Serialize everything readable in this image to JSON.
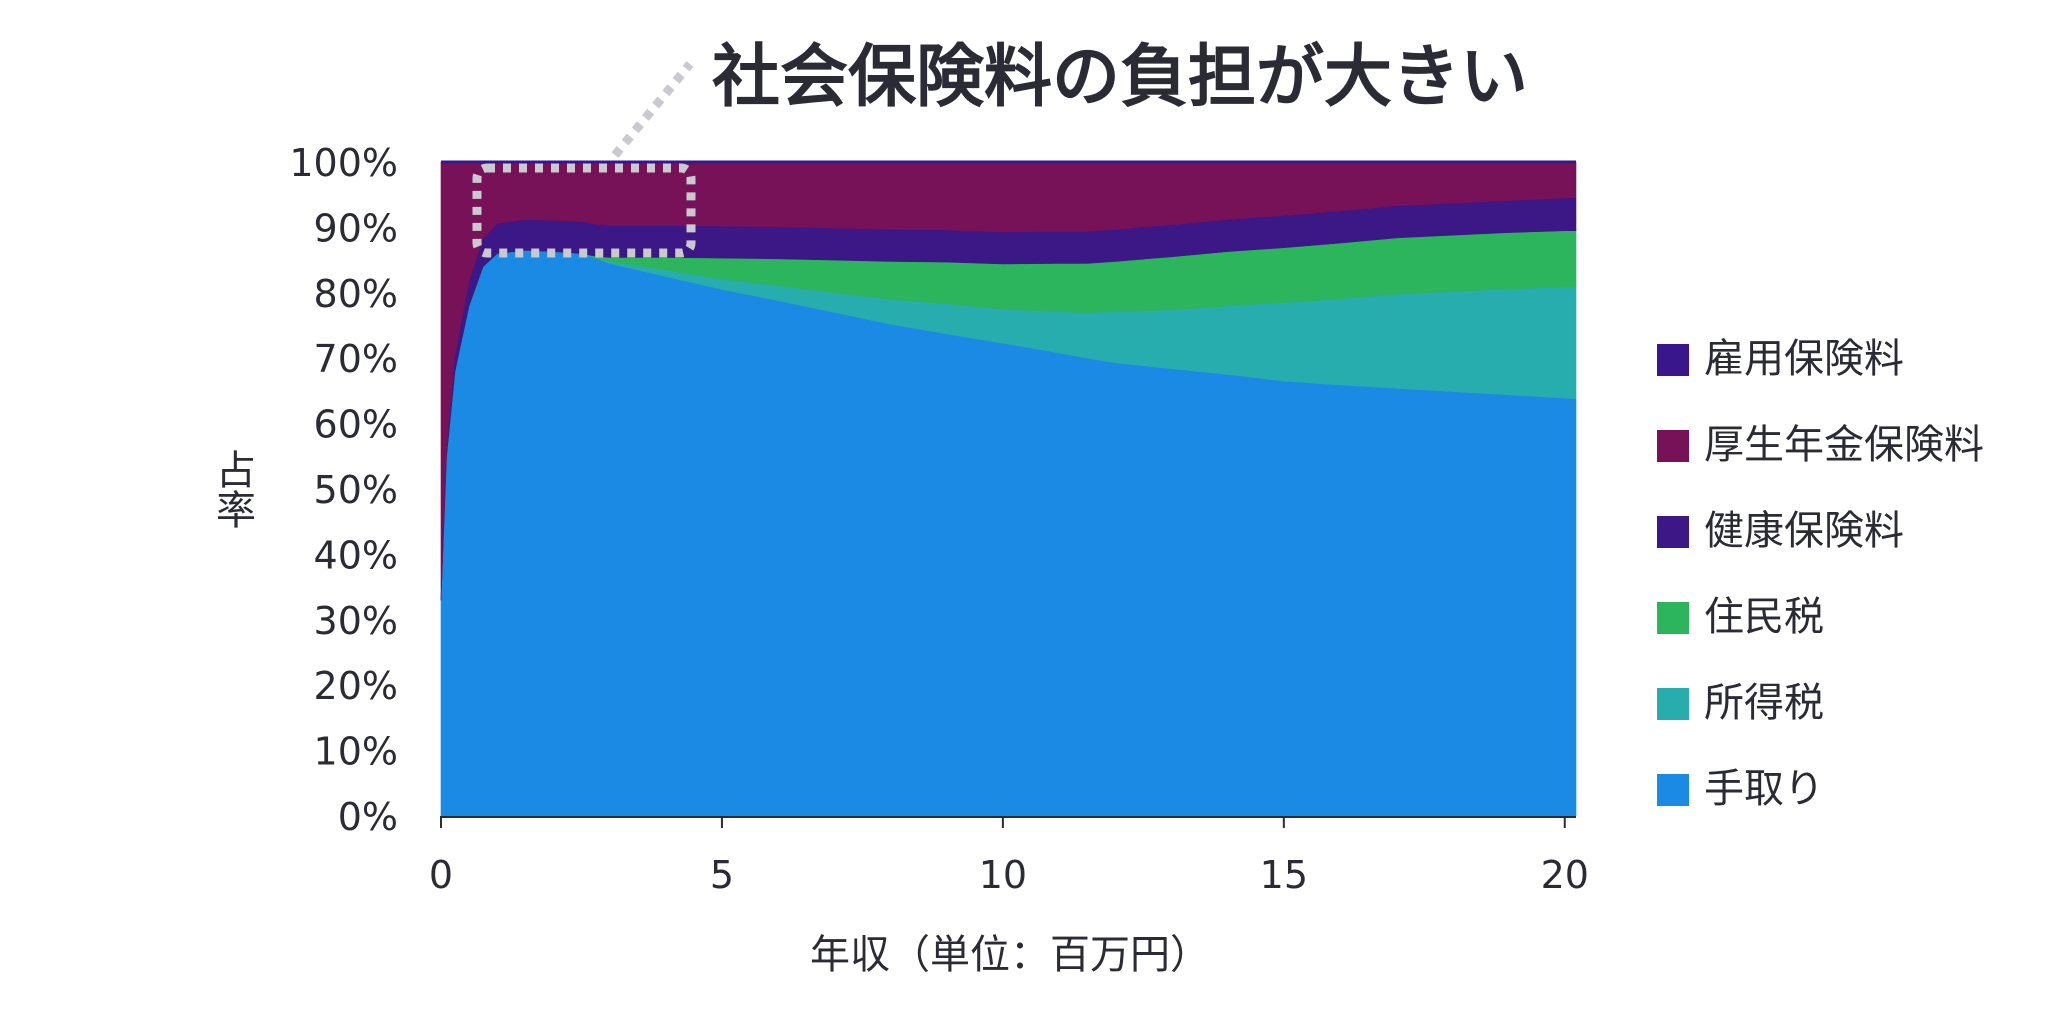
{
  "chart_data": {
    "type": "area",
    "stacked": true,
    "normalized": true,
    "title": "",
    "annotation": "社会保険料の負担が大きい",
    "xlabel": "年収（単位：百万円）",
    "ylabel": "占率",
    "xlim": [
      0,
      20.2
    ],
    "ylim": [
      0,
      100
    ],
    "x_ticks": [
      0,
      5,
      10,
      15,
      20
    ],
    "x_tick_labels": [
      "0",
      "5",
      "10",
      "15",
      "20"
    ],
    "y_ticks": [
      0,
      10,
      20,
      30,
      40,
      50,
      60,
      70,
      80,
      90,
      100
    ],
    "y_tick_labels": [
      "0%",
      "10%",
      "20%",
      "30%",
      "40%",
      "50%",
      "60%",
      "70%",
      "80%",
      "90%",
      "100%"
    ],
    "grid": false,
    "legend_position": "right",
    "legend": [
      "雇用保険料",
      "厚生年金保険料",
      "健康保険料",
      "住民税",
      "所得税",
      "手取り"
    ],
    "x": [
      0,
      0.1,
      0.25,
      0.5,
      0.75,
      1.0,
      1.5,
      2.0,
      2.5,
      2.75,
      3,
      4,
      5,
      6,
      7,
      8,
      9,
      10,
      11,
      11.5,
      12,
      13,
      14,
      15,
      16,
      17,
      18,
      19,
      20,
      20.2
    ],
    "series": [
      {
        "name": "手取り",
        "color": "#1a8ae5",
        "values": [
          33,
          55,
          68,
          78,
          84,
          86,
          86.5,
          86.3,
          86,
          85.3,
          84.5,
          82.5,
          80.5,
          78.8,
          77,
          75.2,
          73.7,
          72.3,
          70.8,
          70,
          69.3,
          68.4,
          67.5,
          66.5,
          65.9,
          65.4,
          64.9,
          64.4,
          63.9,
          63.8
        ]
      },
      {
        "name": "所得税",
        "color": "#27adad",
        "values": [
          0,
          0,
          0,
          0,
          0,
          0,
          0,
          0,
          0,
          0,
          0.3,
          1.0,
          1.6,
          2.3,
          3.0,
          3.8,
          4.6,
          5.2,
          6.3,
          7.0,
          7.8,
          9.0,
          10.5,
          12.0,
          13.2,
          14.4,
          15.3,
          16.2,
          17.0,
          17.1
        ]
      },
      {
        "name": "住民税",
        "color": "#2db55d",
        "values": [
          0,
          0,
          0,
          0,
          0,
          0,
          0,
          0,
          0,
          0.3,
          0.6,
          1.9,
          3.2,
          4.1,
          5.0,
          5.8,
          6.4,
          6.9,
          7.4,
          7.5,
          7.7,
          8.1,
          8.3,
          8.4,
          8.5,
          8.6,
          8.6,
          8.6,
          8.6,
          8.6
        ]
      },
      {
        "name": "健康保険料",
        "color": "#3c1786",
        "values": [
          0,
          1,
          2.5,
          3.8,
          4.3,
          4.6,
          4.7,
          4.8,
          4.9,
          4.9,
          4.9,
          4.9,
          4.9,
          4.9,
          4.9,
          4.9,
          4.9,
          4.9,
          4.9,
          4.9,
          4.9,
          4.9,
          4.9,
          4.9,
          4.9,
          4.9,
          4.9,
          4.9,
          5.0,
          5.0
        ]
      },
      {
        "name": "厚生年金保険料",
        "color": "#771158",
        "values": [
          67,
          44,
          29.5,
          18.2,
          11.7,
          9.4,
          8.8,
          8.9,
          9.1,
          9.5,
          9.7,
          9.7,
          9.8,
          9.9,
          10.1,
          10.3,
          10.4,
          10.7,
          10.6,
          10.6,
          10.3,
          9.6,
          8.8,
          8.2,
          7.5,
          6.7,
          6.3,
          5.9,
          5.5,
          5.5
        ]
      },
      {
        "name": "雇用保険料",
        "color": "#3a168c",
        "values": [
          0,
          0,
          0,
          0,
          0,
          0,
          0,
          0,
          0,
          0,
          0,
          0,
          0,
          0,
          0,
          0,
          0,
          0,
          0,
          0,
          0,
          0,
          0,
          0,
          0,
          0,
          0,
          0,
          0,
          0
        ]
      }
    ]
  }
}
